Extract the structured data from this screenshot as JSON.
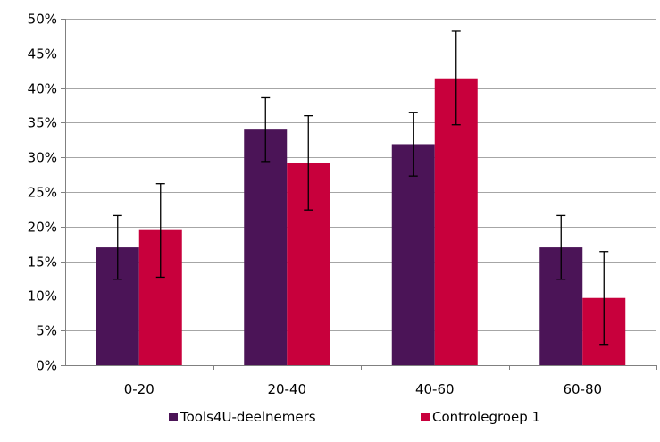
{
  "chart_data": {
    "type": "bar",
    "title": "",
    "xlabel": "",
    "ylabel": "",
    "categories": [
      "0-20",
      "20-40",
      "40-60",
      "60-80"
    ],
    "ylim": [
      0,
      50
    ],
    "y_tick_step": 5,
    "y_tick_format": "percent",
    "grid": "horizontal",
    "legend": "bottom",
    "series": [
      {
        "name": "Tools4U-deelnemers",
        "color": "#4b1457",
        "values": [
          17,
          34,
          31.9,
          17
        ],
        "error_low": [
          12.4,
          29.4,
          27.3,
          12.4
        ],
        "error_high": [
          21.6,
          38.6,
          36.5,
          21.6
        ]
      },
      {
        "name": "Controlegroep 1",
        "color": "#c8003c",
        "values": [
          19.5,
          29.2,
          41.4,
          9.7
        ],
        "error_low": [
          12.7,
          22.4,
          34.7,
          3.0
        ],
        "error_high": [
          26.2,
          36.0,
          48.2,
          16.4
        ]
      }
    ]
  }
}
